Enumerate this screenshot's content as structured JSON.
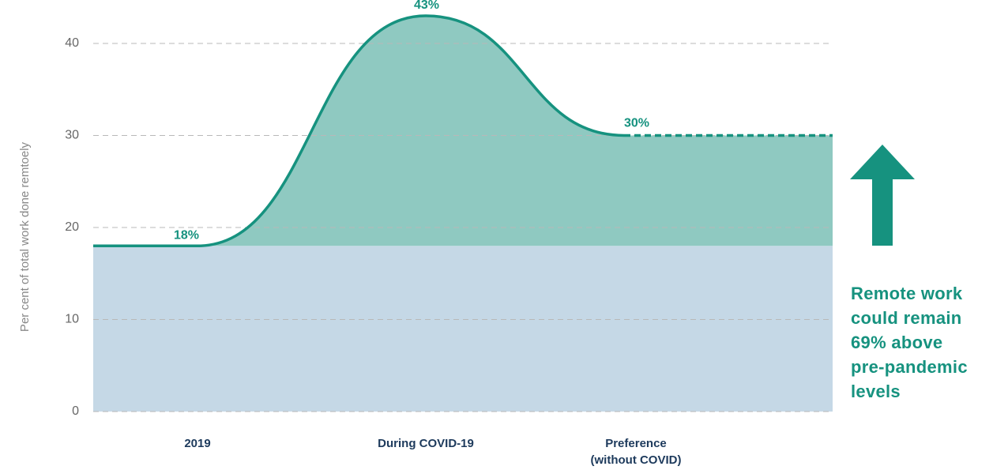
{
  "chart_data": {
    "type": "area-line",
    "y_axis_label": "Per cent of total work done remtoely",
    "categories": [
      "2019",
      "During COVID-19",
      "Preference (without COVID)"
    ],
    "values": [
      18,
      43,
      30
    ],
    "value_labels": [
      "18%",
      "43%",
      "30%"
    ],
    "ylim": [
      0,
      43
    ],
    "yticks": [
      0,
      10,
      20,
      30,
      40
    ],
    "grid": true,
    "line_color": "#16927f",
    "area_color": "#8fc9c1",
    "base_color": "#c5d8e6",
    "annotation": [
      "Remote work",
      "could remain",
      "69% above",
      "pre-pandemic",
      "levels"
    ]
  }
}
